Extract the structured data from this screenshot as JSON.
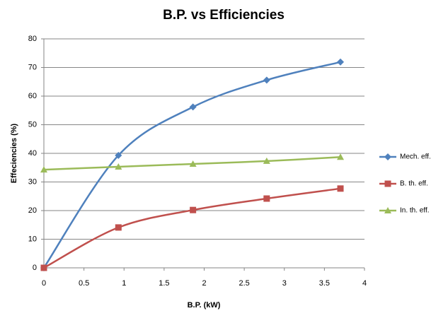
{
  "chart_data": {
    "type": "line",
    "title": "B.P. vs  Efficiencies",
    "x_label": "B.P. (kW)",
    "y_label": "Effeciencies  (%)",
    "x": [
      0,
      0.93,
      1.86,
      2.78,
      3.7
    ],
    "series": [
      {
        "name": "Mech. eff.",
        "color": "#4f81bd",
        "marker": "diamond",
        "values": [
          0,
          39.3,
          56.2,
          65.6,
          71.9
        ]
      },
      {
        "name": "B. th. eff.",
        "color": "#c0504d",
        "marker": "square",
        "values": [
          0,
          14.1,
          20.2,
          24.2,
          27.7
        ]
      },
      {
        "name": "In. th. eff.",
        "color": "#9bbb59",
        "marker": "triangle",
        "values": [
          34.3,
          35.3,
          36.3,
          37.3,
          38.7
        ]
      }
    ],
    "xlim": [
      0,
      4
    ],
    "xticks": [
      0,
      0.5,
      1,
      1.5,
      2,
      2.5,
      3,
      3.5,
      4
    ],
    "ylim": [
      0,
      80
    ],
    "yticks": [
      0,
      10,
      20,
      30,
      40,
      50,
      60,
      70,
      80
    ],
    "grid": true,
    "smooth": true,
    "legend": "right"
  }
}
